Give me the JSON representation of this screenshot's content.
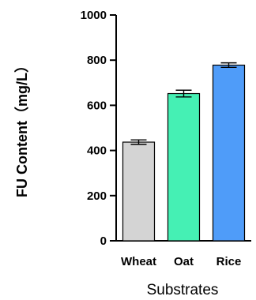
{
  "chart_data": {
    "type": "bar",
    "categories": [
      "Wheat",
      "Oat",
      "Rice"
    ],
    "values": [
      437,
      652,
      778
    ],
    "errors": [
      10,
      15,
      10
    ],
    "colors": [
      "#d4d4d4",
      "#45f0b4",
      "#4f9cf9"
    ],
    "xlabel": "Substrates",
    "ylabel": "FU Content（mg/L）",
    "ylim": [
      0,
      1000
    ],
    "yticks": [
      0,
      200,
      400,
      600,
      800,
      1000
    ],
    "grid": false,
    "legend": "none"
  }
}
